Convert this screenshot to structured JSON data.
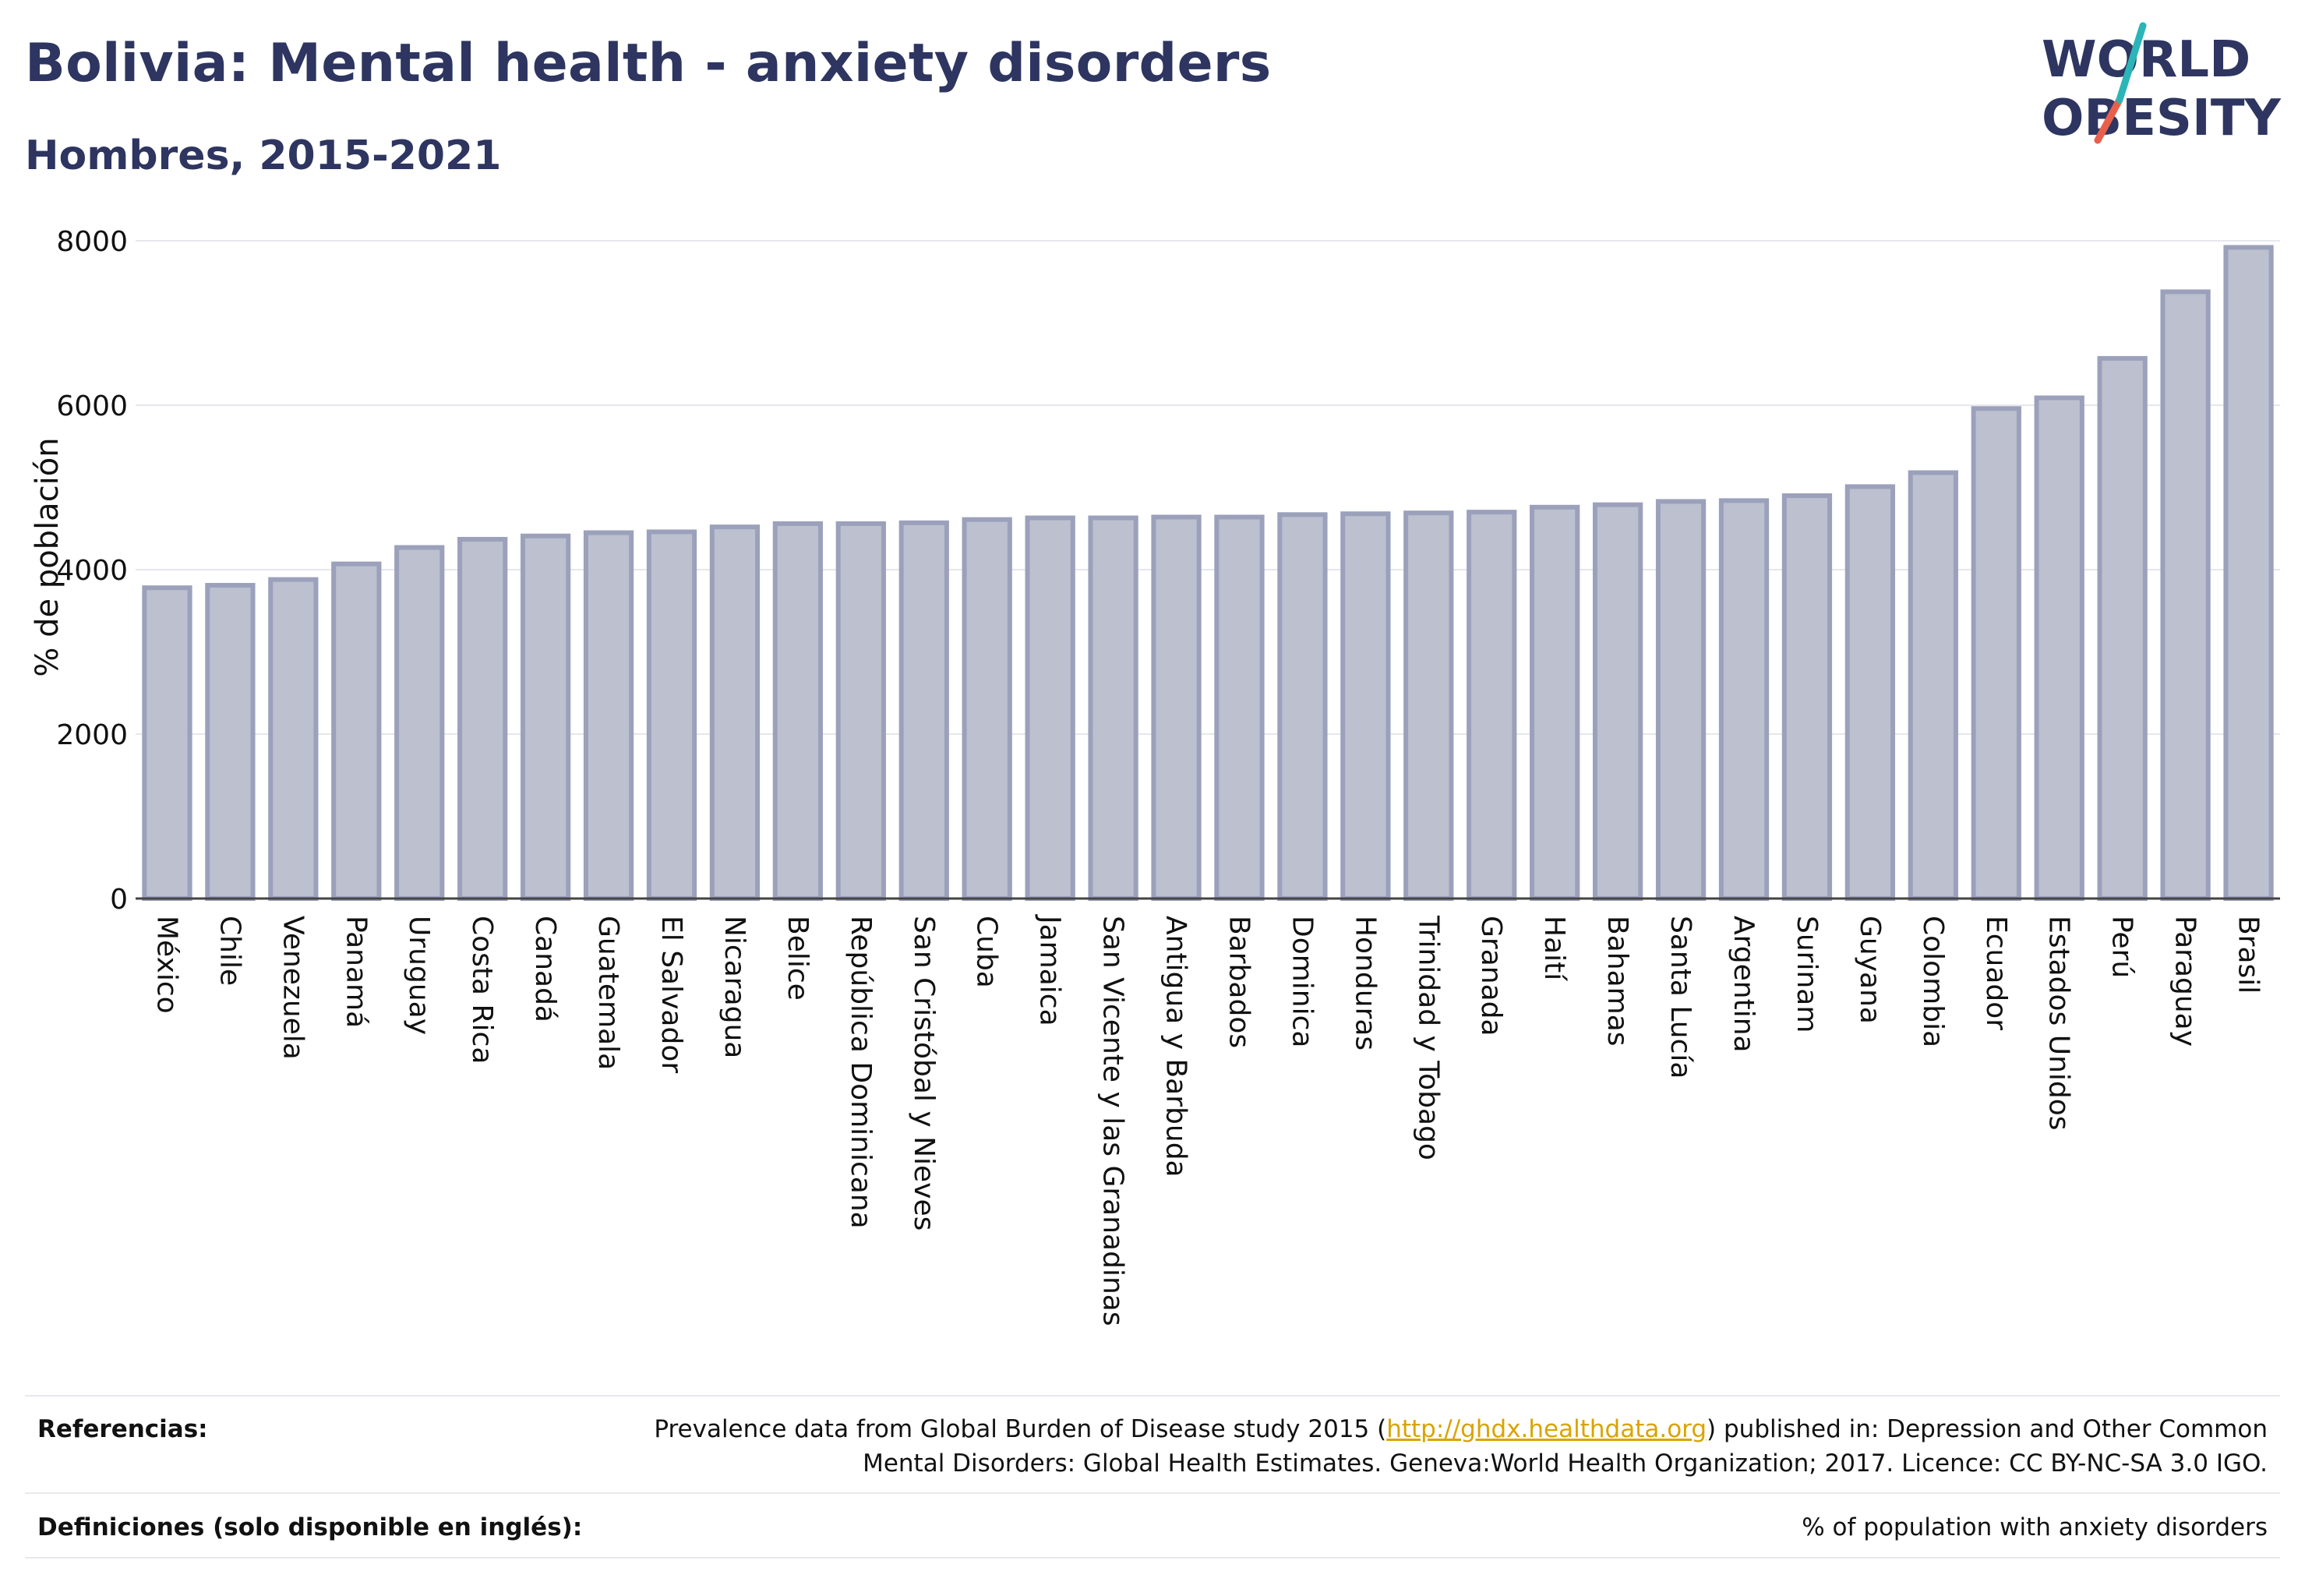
{
  "header": {
    "title": "Bolivia: Mental health - anxiety disorders",
    "subtitle": "Hombres, 2015-2021"
  },
  "logo": {
    "line1": "WORLD",
    "line2": "OBESITY",
    "colors": {
      "text": "#2d3560",
      "slash_teal": "#2bb5b8",
      "slash_red": "#e8604c"
    }
  },
  "chart_data": {
    "type": "bar",
    "title": "",
    "xlabel": "",
    "ylabel": "% de población",
    "ylim": [
      0,
      8000
    ],
    "yticks": [
      0,
      2000,
      4000,
      6000,
      8000
    ],
    "grid": true,
    "categories": [
      "México",
      "Chile",
      "Venezuela",
      "Panamá",
      "Uruguay",
      "Costa Rica",
      "Canadá",
      "Guatemala",
      "El Salvador",
      "Nicaragua",
      "Belice",
      "República Dominicana",
      "San Cristóbal y Nieves",
      "Cuba",
      "Jamaica",
      "San Vicente y las Granadinas",
      "Antigua y Barbuda",
      "Barbados",
      "Dominica",
      "Honduras",
      "Trinidad y Tobago",
      "Granada",
      "Haití",
      "Bahamas",
      "Santa Lucía",
      "Argentina",
      "Surinam",
      "Guyana",
      "Colombia",
      "Ecuador",
      "Estados Unidos",
      "Perú",
      "Paraguay",
      "Brasil"
    ],
    "values": [
      3780,
      3810,
      3880,
      4070,
      4270,
      4370,
      4410,
      4450,
      4460,
      4520,
      4560,
      4560,
      4570,
      4610,
      4630,
      4630,
      4640,
      4640,
      4670,
      4680,
      4690,
      4700,
      4760,
      4790,
      4830,
      4840,
      4900,
      5010,
      5180,
      5960,
      6090,
      6570,
      7380,
      7920
    ],
    "colors": {
      "bar_fill": "#bcc0cf",
      "bar_stroke": "#9ba1bb",
      "grid": "#e6e7ec",
      "axis": "#444444"
    }
  },
  "footer": {
    "references_label": "Referencias:",
    "references_pre": "Prevalence data from Global Burden of Disease study 2015 (",
    "references_link": "http://ghdx.healthdata.org",
    "references_post": ") published in: Depression and Other Common",
    "references_line2": "Mental Disorders: Global Health Estimates. Geneva:World Health Organization; 2017. Licence: CC BY-NC-SA 3.0 IGO.",
    "definitions_label": "Definiciones (solo disponible en inglés):",
    "definitions_text": "% of population with anxiety disorders"
  }
}
